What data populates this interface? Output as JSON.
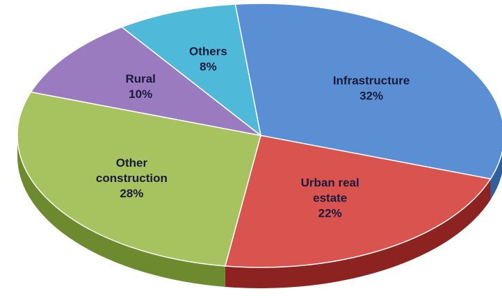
{
  "chart_data": {
    "type": "pie",
    "title": "",
    "style": "3d",
    "slices": [
      {
        "label_lines": [
          "Infrastructure"
        ],
        "value": 32,
        "value_label": "32%",
        "color": "#5b8fd4",
        "side_color": "#2f5f9e"
      },
      {
        "label_lines": [
          "Urban real",
          "estate"
        ],
        "value": 22,
        "value_label": "22%",
        "color": "#d9534f",
        "side_color": "#8c2320"
      },
      {
        "label_lines": [
          "Other",
          "construction"
        ],
        "value": 28,
        "value_label": "28%",
        "color": "#a6c35f",
        "side_color": "#6e8a2f"
      },
      {
        "label_lines": [
          "Rural"
        ],
        "value": 10,
        "value_label": "10%",
        "color": "#9b7bc0",
        "side_color": "#63478a"
      },
      {
        "label_lines": [
          "Others"
        ],
        "value": 8,
        "value_label": "8%",
        "color": "#4fb9d9",
        "side_color": "#257c99"
      }
    ]
  }
}
